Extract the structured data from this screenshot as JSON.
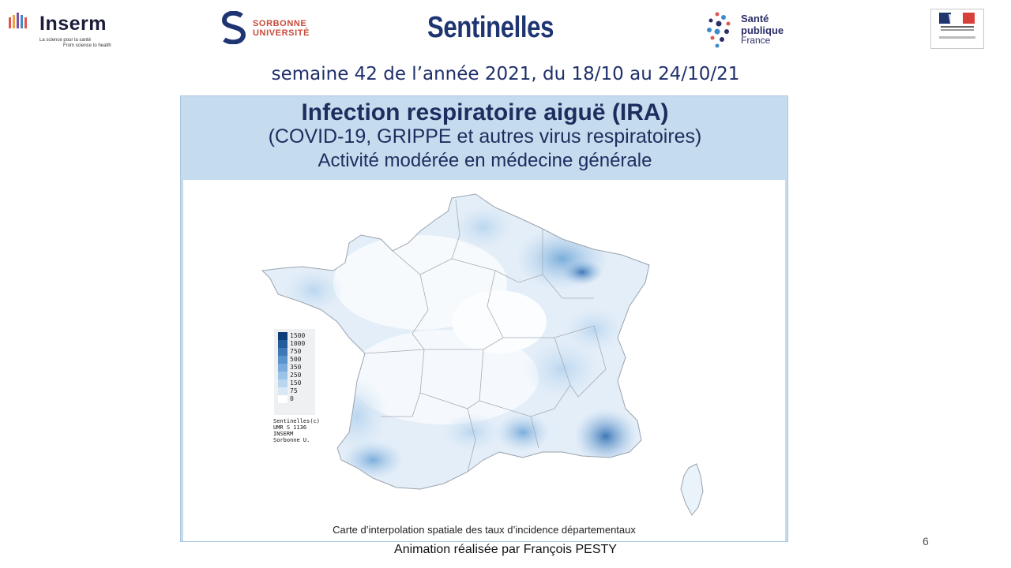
{
  "header": {
    "inserm": {
      "name": "Inserm",
      "tagline_fr": "La science pour la santé",
      "tagline_en": "From science to health"
    },
    "sorbonne": {
      "line1": "SORBONNE",
      "line2": "UNIVERSITÉ"
    },
    "sentinelles": "Sentinelles",
    "spf": {
      "line1": "Santé",
      "line2": "publique",
      "line3": "France"
    }
  },
  "subtitle": "semaine 42 de l’année 2021, du 18/10 au 24/10/21",
  "card": {
    "title": "Infection respiratoire aiguë (IRA)",
    "sub1": "(COVID-19, GRIPPE et autres virus respiratoires)",
    "sub2": "Activité modérée en médecine générale",
    "caption": "Carte d’interpolation spatiale des taux d’incidence départementaux"
  },
  "legend": {
    "items": [
      {
        "label": "1500",
        "color": "#0d3d7a"
      },
      {
        "label": "1000",
        "color": "#245d9c"
      },
      {
        "label": "750",
        "color": "#3f78b7"
      },
      {
        "label": "500",
        "color": "#5b93cc"
      },
      {
        "label": "350",
        "color": "#7aaddb"
      },
      {
        "label": "250",
        "color": "#9bc3e7"
      },
      {
        "label": "150",
        "color": "#bad6ef"
      },
      {
        "label": "75",
        "color": "#d8e8f6"
      },
      {
        "label": "0",
        "color": "#ffffff"
      }
    ],
    "credits": "Sentinelles(c)\nUMR S 1136\nINSERM\nSorbonne U."
  },
  "footer": "Animation réalisée par François PESTY",
  "page_number": "6",
  "colors": {
    "navy": "#1e3572",
    "card_bg": "#c5dbee",
    "sorbonne_red": "#c8493a"
  }
}
